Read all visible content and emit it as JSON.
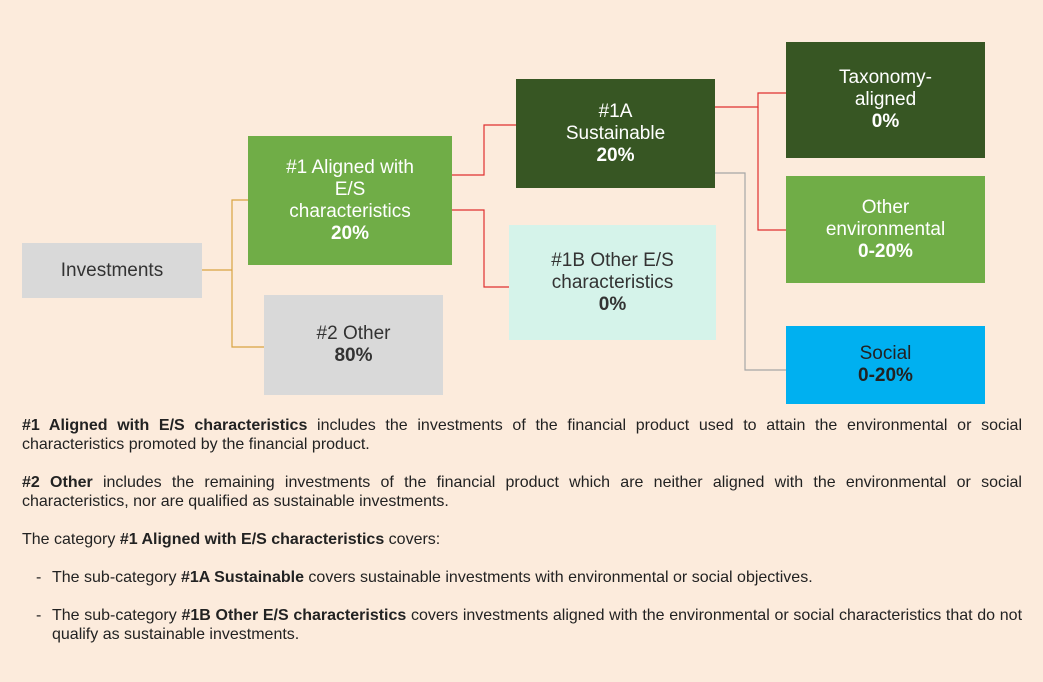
{
  "nodes": [
    {
      "id": "investments",
      "label": [
        "Investments"
      ],
      "value": null
    },
    {
      "id": "aligned",
      "label": [
        "#1 Aligned with",
        "E/S",
        "characteristics"
      ],
      "value": "20%"
    },
    {
      "id": "other",
      "label": [
        "#2 Other"
      ],
      "value": "80%"
    },
    {
      "id": "sustainable",
      "label": [
        "#1A",
        "Sustainable"
      ],
      "value": "20%"
    },
    {
      "id": "other-es",
      "label": [
        "#1B Other E/S",
        "characteristics"
      ],
      "value": "0%"
    },
    {
      "id": "taxonomy",
      "label": [
        "Taxonomy-",
        "aligned"
      ],
      "value": "0%"
    },
    {
      "id": "other-env",
      "label": [
        "Other",
        "environmental"
      ],
      "value": "0-20%"
    },
    {
      "id": "social",
      "label": [
        "Social"
      ],
      "value": "0-20%"
    }
  ],
  "paragraphs": [
    {
      "bullet": false,
      "segments": [
        {
          "text": "#1 Aligned with E/S characteristics",
          "bold": true
        },
        {
          "text": " includes the investments of the financial product used to attain the environmental or social characteristics promoted by the financial product.",
          "bold": false
        }
      ]
    },
    {
      "bullet": false,
      "segments": [
        {
          "text": "#2 Other",
          "bold": true
        },
        {
          "text": " includes the remaining investments of the financial product which are neither aligned with the environmental or social characteristics, nor are qualified as sustainable investments.",
          "bold": false
        }
      ]
    },
    {
      "bullet": false,
      "segments": [
        {
          "text": "The category ",
          "bold": false
        },
        {
          "text": "#1 Aligned with E/S characteristics",
          "bold": true
        },
        {
          "text": " covers:",
          "bold": false
        }
      ]
    },
    {
      "bullet": true,
      "segments": [
        {
          "text": "The sub-category ",
          "bold": false
        },
        {
          "text": "#1A Sustainable",
          "bold": true
        },
        {
          "text": " covers sustainable investments with environmental or social objectives.",
          "bold": false
        }
      ]
    },
    {
      "bullet": true,
      "segments": [
        {
          "text": "The sub-category ",
          "bold": false
        },
        {
          "text": "#1B Other E/S characteristics",
          "bold": true
        },
        {
          "text": " covers investments aligned with the environmental or social characteristics that do not qualify as sustainable investments.",
          "bold": false
        }
      ]
    }
  ]
}
